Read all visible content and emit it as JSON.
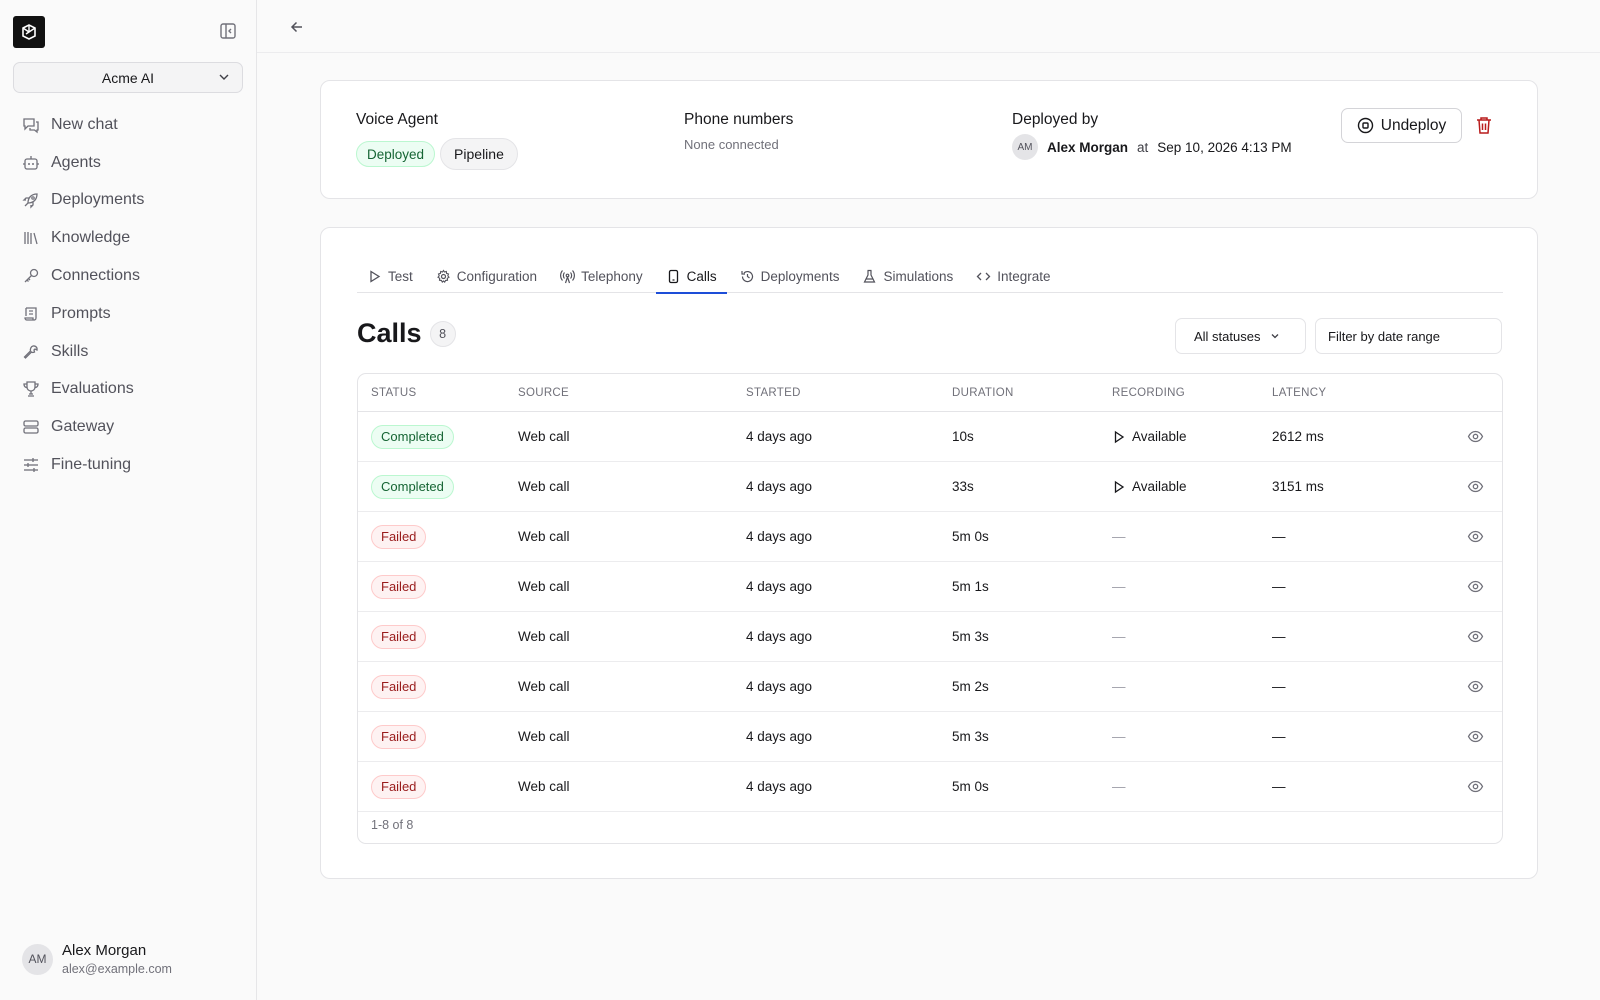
{
  "sidebar": {
    "workspace": "Acme AI",
    "nav": [
      {
        "label": "New chat",
        "icon": "chat-icon"
      },
      {
        "label": "Agents",
        "icon": "bot-icon"
      },
      {
        "label": "Deployments",
        "icon": "rocket-icon"
      },
      {
        "label": "Knowledge",
        "icon": "library-icon"
      },
      {
        "label": "Connections",
        "icon": "key-icon"
      },
      {
        "label": "Prompts",
        "icon": "scroll-icon"
      },
      {
        "label": "Skills",
        "icon": "wrench-icon"
      },
      {
        "label": "Evaluations",
        "icon": "trophy-icon"
      },
      {
        "label": "Gateway",
        "icon": "server-icon"
      },
      {
        "label": "Fine-tuning",
        "icon": "sliders-icon"
      }
    ],
    "user": {
      "initials": "AM",
      "name": "Alex Morgan",
      "email": "alex@example.com"
    }
  },
  "agent": {
    "type_label": "Voice Agent",
    "status_badge": "Deployed",
    "mode_badge": "Pipeline",
    "phone_label": "Phone numbers",
    "phone_value": "None connected",
    "deployed_by_label": "Deployed by",
    "deployer_initials": "AM",
    "deployer_name": "Alex Morgan",
    "at_label": "at",
    "deployed_at": "Sep 10, 2026 4:13 PM",
    "undeploy_label": "Undeploy"
  },
  "tabs": [
    {
      "label": "Test",
      "icon": "play-icon"
    },
    {
      "label": "Configuration",
      "icon": "gear-icon"
    },
    {
      "label": "Telephony",
      "icon": "antenna-icon"
    },
    {
      "label": "Calls",
      "icon": "phone-icon",
      "active": true
    },
    {
      "label": "Deployments",
      "icon": "history-icon"
    },
    {
      "label": "Simulations",
      "icon": "flask-icon"
    },
    {
      "label": "Integrate",
      "icon": "code-icon"
    }
  ],
  "calls": {
    "title": "Calls",
    "count": "8",
    "status_filter": "All statuses",
    "date_filter_placeholder": "Filter by date range",
    "columns": [
      "STATUS",
      "SOURCE",
      "STARTED",
      "DURATION",
      "RECORDING",
      "LATENCY"
    ],
    "rows": [
      {
        "status": "Completed",
        "source": "Web call",
        "started": "4 days ago",
        "duration": "10s",
        "recording": "Available",
        "latency": "2612 ms"
      },
      {
        "status": "Completed",
        "source": "Web call",
        "started": "4 days ago",
        "duration": "33s",
        "recording": "Available",
        "latency": "3151 ms"
      },
      {
        "status": "Failed",
        "source": "Web call",
        "started": "4 days ago",
        "duration": "5m 0s",
        "recording": "—",
        "latency": "—"
      },
      {
        "status": "Failed",
        "source": "Web call",
        "started": "4 days ago",
        "duration": "5m 1s",
        "recording": "—",
        "latency": "—"
      },
      {
        "status": "Failed",
        "source": "Web call",
        "started": "4 days ago",
        "duration": "5m 3s",
        "recording": "—",
        "latency": "—"
      },
      {
        "status": "Failed",
        "source": "Web call",
        "started": "4 days ago",
        "duration": "5m 2s",
        "recording": "—",
        "latency": "—"
      },
      {
        "status": "Failed",
        "source": "Web call",
        "started": "4 days ago",
        "duration": "5m 3s",
        "recording": "—",
        "latency": "—"
      },
      {
        "status": "Failed",
        "source": "Web call",
        "started": "4 days ago",
        "duration": "5m 0s",
        "recording": "—",
        "latency": "—"
      }
    ],
    "pagination": "1-8 of 8"
  },
  "colors": {
    "accent": "#1d4ed8",
    "success": "#166534",
    "danger": "#991b1b",
    "trash": "#b91c1c"
  }
}
